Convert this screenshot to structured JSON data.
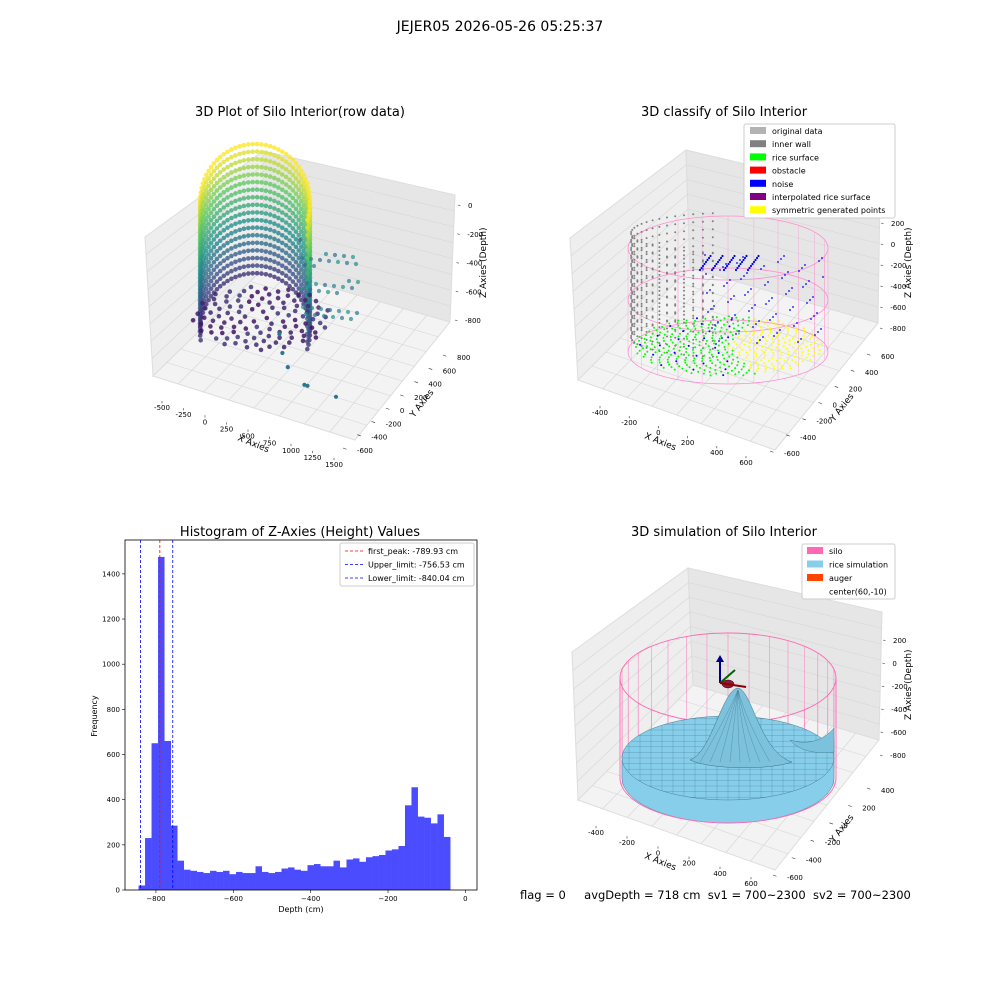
{
  "figure": {
    "suptitle": "JEJER05 2026-05-26 05:25:37"
  },
  "footer": {
    "flag": "flag = 0",
    "avg_depth": "avgDepth = 718 cm",
    "sv1": "sv1 = 700~2300",
    "sv2": "sv2 = 700~2300"
  },
  "chart_data": [
    {
      "type": "scatter",
      "title": "3D Plot of Silo Interior(row data)",
      "xlabel": "X Axies",
      "ylabel": "Y Axies",
      "zlabel": "Z Axies (Depth)",
      "xlim": [
        -600,
        1550
      ],
      "ylim": [
        -650,
        850
      ],
      "zlim": [
        -950,
        50
      ],
      "x_ticks": [
        "-500",
        "-250",
        "0",
        "250",
        "500",
        "750",
        "1000",
        "1250",
        "1500"
      ],
      "y_ticks": [
        "-600",
        "-400",
        "-200",
        "0",
        "200",
        "400",
        "600",
        "800"
      ],
      "z_ticks": [
        "0",
        "-200",
        "-400",
        "-600",
        "-800"
      ],
      "colormap": "viridis",
      "outlier_points": [
        {
          "x": 600,
          "y": 100,
          "z": -620
        },
        {
          "x": 640,
          "y": 60,
          "z": -700
        },
        {
          "x": 700,
          "y": 40,
          "z": -760
        },
        {
          "x": 900,
          "y": -80,
          "z": -830
        },
        {
          "x": 930,
          "y": -70,
          "z": -835
        },
        {
          "x": 1240,
          "y": -120,
          "z": -880
        }
      ]
    },
    {
      "type": "scatter",
      "title": "3D classify of Silo Interior",
      "xlabel": "X Axies",
      "ylabel": "Y Axies",
      "zlabel": "Z Axies (Depth)",
      "xlim": [
        -600,
        700
      ],
      "ylim": [
        -650,
        650
      ],
      "zlim": [
        -900,
        220
      ],
      "x_ticks": [
        "-400",
        "-200",
        "0",
        "200",
        "400",
        "600"
      ],
      "y_ticks": [
        "-600",
        "-400",
        "-200",
        "0",
        "200",
        "400",
        "600"
      ],
      "z_ticks": [
        "200",
        "0",
        "-200",
        "-400",
        "-600",
        "-800"
      ],
      "legend_position": "top-right",
      "legend": [
        {
          "label": "original data",
          "color": "#b3b3b3"
        },
        {
          "label": "inner wall",
          "color": "#808080"
        },
        {
          "label": "rice surface",
          "color": "#00ff00"
        },
        {
          "label": "obstacle",
          "color": "#ff0000"
        },
        {
          "label": "noise",
          "color": "#0000ff"
        },
        {
          "label": "interpolated rice surface",
          "color": "#800080"
        },
        {
          "label": "symmetric generated points",
          "color": "#ffff00"
        }
      ]
    },
    {
      "type": "bar",
      "title": "Histogram of Z-Axies (Height) Values",
      "xlabel": "Depth (cm)",
      "ylabel": "Frequency",
      "xlim": [
        -880,
        30
      ],
      "ylim": [
        0,
        1550
      ],
      "x_ticks": [
        -800,
        -600,
        -400,
        -200,
        0
      ],
      "y_ticks": [
        0,
        200,
        400,
        600,
        800,
        1000,
        1200,
        1400
      ],
      "bar_color": "#0000ff",
      "bin_start": -845,
      "bin_width": 16.8,
      "values": [
        20,
        230,
        650,
        1475,
        660,
        285,
        130,
        90,
        85,
        80,
        75,
        85,
        80,
        85,
        70,
        80,
        75,
        75,
        105,
        80,
        75,
        80,
        95,
        100,
        90,
        85,
        110,
        115,
        105,
        105,
        130,
        100,
        135,
        140,
        125,
        145,
        150,
        155,
        175,
        180,
        195,
        375,
        455,
        325,
        320,
        295,
        335,
        235
      ],
      "legend_position": "top-right",
      "vlines": [
        {
          "label": "first_peak: -789.93 cm",
          "x": -789.93,
          "color": "#ff0000"
        },
        {
          "label": "Upper_limit: -756.53 cm",
          "x": -756.53,
          "color": "#0000ff"
        },
        {
          "label": "Lower_limit: -840.04 cm",
          "x": -840.04,
          "color": "#0000ff"
        }
      ]
    },
    {
      "type": "area",
      "title": "3D simulation of Silo Interior",
      "xlabel": "X Axies",
      "ylabel": "Y Axies",
      "zlabel": "Z Axies (Depth)",
      "xlim": [
        -600,
        700
      ],
      "ylim": [
        -650,
        650
      ],
      "zlim": [
        -900,
        300
      ],
      "x_ticks": [
        "-400",
        "-200",
        "0",
        "200",
        "400",
        "600"
      ],
      "y_ticks": [
        "-600",
        "-400",
        "-200",
        "0",
        "200",
        "400"
      ],
      "z_ticks": [
        "200",
        "0",
        "-200",
        "-400",
        "-600",
        "-800"
      ],
      "legend_position": "top-right",
      "legend": [
        {
          "label": "silo",
          "color": "#ff69b4"
        },
        {
          "label": "rice simulation",
          "color": "#87ceeb"
        },
        {
          "label": "auger",
          "color": "#ff4500"
        },
        {
          "label": "center(60,-10)",
          "color": ""
        }
      ]
    }
  ]
}
